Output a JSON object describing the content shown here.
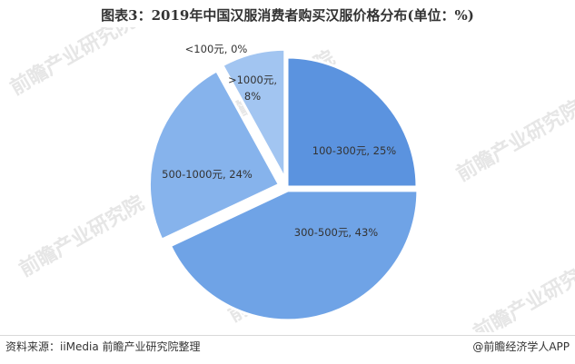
{
  "title": "图表3：2019年中国汉服消费者购买汉服价格分布(单位：%)",
  "footer": {
    "source": "资料来源：iiMedia 前瞻产业研究院整理",
    "credit": "@前瞻经济学人APP"
  },
  "watermark_text": "前瞻产业研究院",
  "colors": {
    "slice_100_300": "#5b93df",
    "slice_300_500": "#6fa3e6",
    "slice_500_1000": "#86b3ec",
    "slice_gt1000": "#a2c5f1",
    "slice_lt100": "#a2c5f1"
  },
  "chart_data": {
    "type": "pie",
    "title": "图表3：2019年中国汉服消费者购买汉服价格分布(单位：%)",
    "slices": [
      {
        "label": "100-300元",
        "value": 25,
        "display": "100-300元, 25%"
      },
      {
        "label": "300-500元",
        "value": 43,
        "display": "300-500元, 43%"
      },
      {
        "label": "500-1000元",
        "value": 24,
        "display": "500-1000元, 24%"
      },
      {
        "label": ">1000元",
        "value": 8,
        "display_line1": ">1000元,",
        "display_line2": "8%"
      },
      {
        "label": "<100元",
        "value": 0,
        "display": "<100元, 0%"
      }
    ],
    "legend": "none"
  }
}
